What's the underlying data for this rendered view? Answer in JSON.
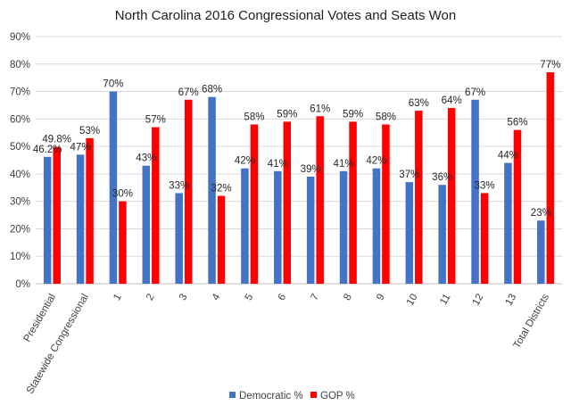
{
  "chart_data": {
    "type": "bar",
    "title": "North Carolina 2016 Congressional Votes and Seats Won",
    "xlabel": "",
    "ylabel": "",
    "ylim": [
      0,
      90
    ],
    "yticks": [
      0,
      10,
      20,
      30,
      40,
      50,
      60,
      70,
      80,
      90
    ],
    "ytick_labels": [
      "0%",
      "10%",
      "20%",
      "30%",
      "40%",
      "50%",
      "60%",
      "70%",
      "80%",
      "90%"
    ],
    "grid": true,
    "legend_position": "bottom",
    "categories": [
      "Presidential",
      "Statewide Congressional",
      "1",
      "2",
      "3",
      "4",
      "5",
      "6",
      "7",
      "8",
      "9",
      "10",
      "11",
      "12",
      "13",
      "Total Districts"
    ],
    "series": [
      {
        "name": "Democratic %",
        "color": "#4472C4",
        "values": [
          46.2,
          47,
          70,
          43,
          33,
          68,
          42,
          41,
          39,
          41,
          42,
          37,
          36,
          67,
          44,
          23
        ],
        "labels": [
          "46.2%",
          "47%",
          "70%",
          "43%",
          "33%",
          "68%",
          "42%",
          "41%",
          "39%",
          "41%",
          "42%",
          "37%",
          "36%",
          "67%",
          "44%",
          "23%"
        ]
      },
      {
        "name": "GOP %",
        "color": "#FF0000",
        "values": [
          49.8,
          53,
          30,
          57,
          67,
          32,
          58,
          59,
          61,
          59,
          58,
          63,
          64,
          33,
          56,
          77
        ],
        "labels": [
          "49.8%",
          "53%",
          "30%",
          "57%",
          "67%",
          "32%",
          "58%",
          "59%",
          "61%",
          "59%",
          "58%",
          "63%",
          "64%",
          "33%",
          "56%",
          "77%"
        ]
      }
    ]
  }
}
